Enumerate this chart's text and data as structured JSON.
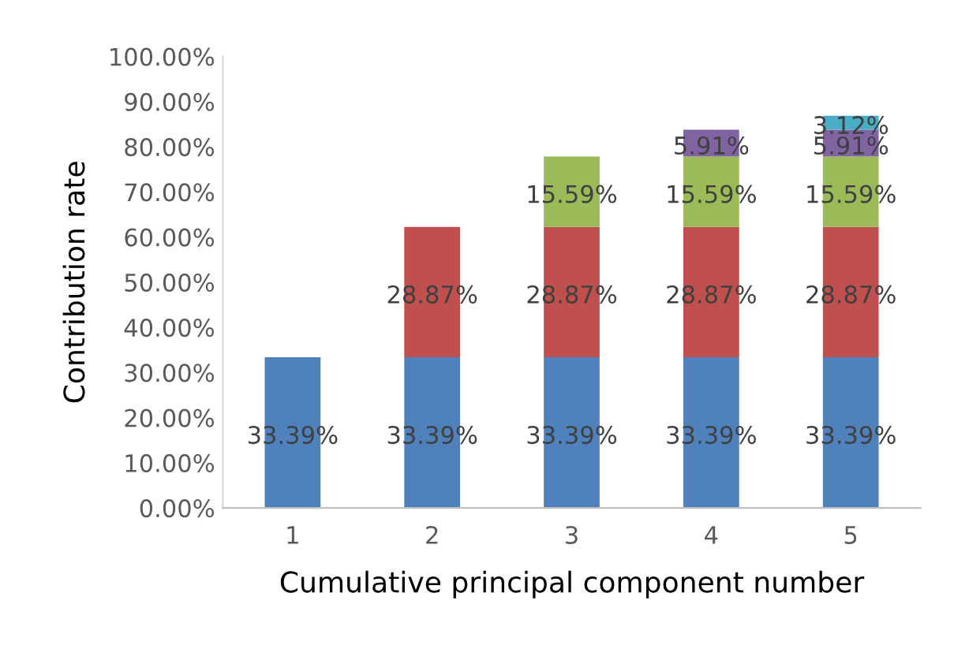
{
  "chart_data": {
    "type": "bar",
    "stacked": true,
    "xlabel": "Cumulative principal component number",
    "ylabel": "Contribution rate",
    "categories": [
      "1",
      "2",
      "3",
      "4",
      "5"
    ],
    "series": [
      {
        "color": "#4f81bd",
        "values": [
          33.39,
          33.39,
          33.39,
          33.39,
          33.39
        ],
        "value_labels": [
          "33.39%",
          "33.39%",
          "33.39%",
          "33.39%",
          "33.39%"
        ]
      },
      {
        "color": "#c0504d",
        "values": [
          null,
          28.87,
          28.87,
          28.87,
          28.87
        ],
        "value_labels": [
          null,
          "28.87%",
          "28.87%",
          "28.87%",
          "28.87%"
        ]
      },
      {
        "color": "#9bbb59",
        "values": [
          null,
          null,
          15.59,
          15.59,
          15.59
        ],
        "value_labels": [
          null,
          null,
          "15.59%",
          "15.59%",
          "15.59%"
        ]
      },
      {
        "color": "#8064a2",
        "values": [
          null,
          null,
          null,
          5.91,
          5.91
        ],
        "value_labels": [
          null,
          null,
          null,
          "5.91%",
          "5.91%"
        ]
      },
      {
        "color": "#4bacc6",
        "values": [
          null,
          null,
          null,
          null,
          3.12
        ],
        "value_labels": [
          null,
          null,
          null,
          null,
          "3.12%"
        ]
      }
    ],
    "ylim": [
      0,
      100
    ],
    "yticks": [
      {
        "value": 0,
        "label": "0.00%"
      },
      {
        "value": 10,
        "label": "10.00%"
      },
      {
        "value": 20,
        "label": "20.00%"
      },
      {
        "value": 30,
        "label": "30.00%"
      },
      {
        "value": 40,
        "label": "40.00%"
      },
      {
        "value": 50,
        "label": "50.00%"
      },
      {
        "value": 60,
        "label": "60.00%"
      },
      {
        "value": 70,
        "label": "70.00%"
      },
      {
        "value": 80,
        "label": "80.00%"
      },
      {
        "value": 90,
        "label": "90.00%"
      },
      {
        "value": 100,
        "label": "100.00%"
      }
    ],
    "grid": false
  }
}
